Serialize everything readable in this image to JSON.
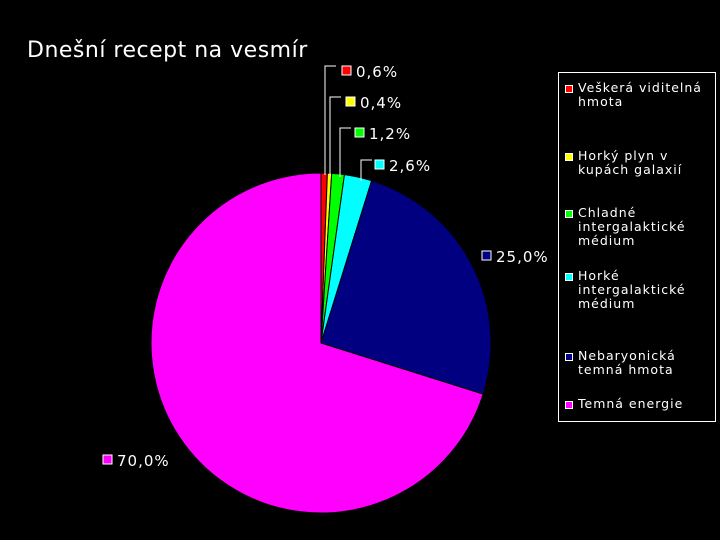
{
  "chart_data": {
    "type": "pie",
    "title": "Dnešní recept na vesmír",
    "slices": [
      {
        "label": "Veškerá viditelná hmota",
        "value": 0.6,
        "value_label": "0,6%",
        "color": "#ff0000"
      },
      {
        "label": "Horký plyn v kupách galaxií",
        "value": 0.4,
        "value_label": "0,4%",
        "color": "#ffff00"
      },
      {
        "label": "Chladné intergalaktické médium",
        "value": 1.2,
        "value_label": "1,2%",
        "color": "#00ff00"
      },
      {
        "label": "Horké intergalaktické médium",
        "value": 2.6,
        "value_label": "2,6%",
        "color": "#00ffff"
      },
      {
        "label": "Nebaryonická temná hmota",
        "value": 25.0,
        "value_label": "25,0%",
        "color": "#000080"
      },
      {
        "label": "Temná energie",
        "value": 70.0,
        "value_label": "70,0%",
        "color": "#ff00ff"
      }
    ],
    "legend": {
      "position": "right",
      "entries": [
        "Veškerá viditelná\nhmota",
        "Horký plyn v\nkupách galaxií",
        "Chladné\nintergalaktické\nmédium",
        "Horké\nintergalaktické\nmédium",
        "Nebaryonická\ntemná hmota",
        "Temná energie"
      ]
    }
  }
}
